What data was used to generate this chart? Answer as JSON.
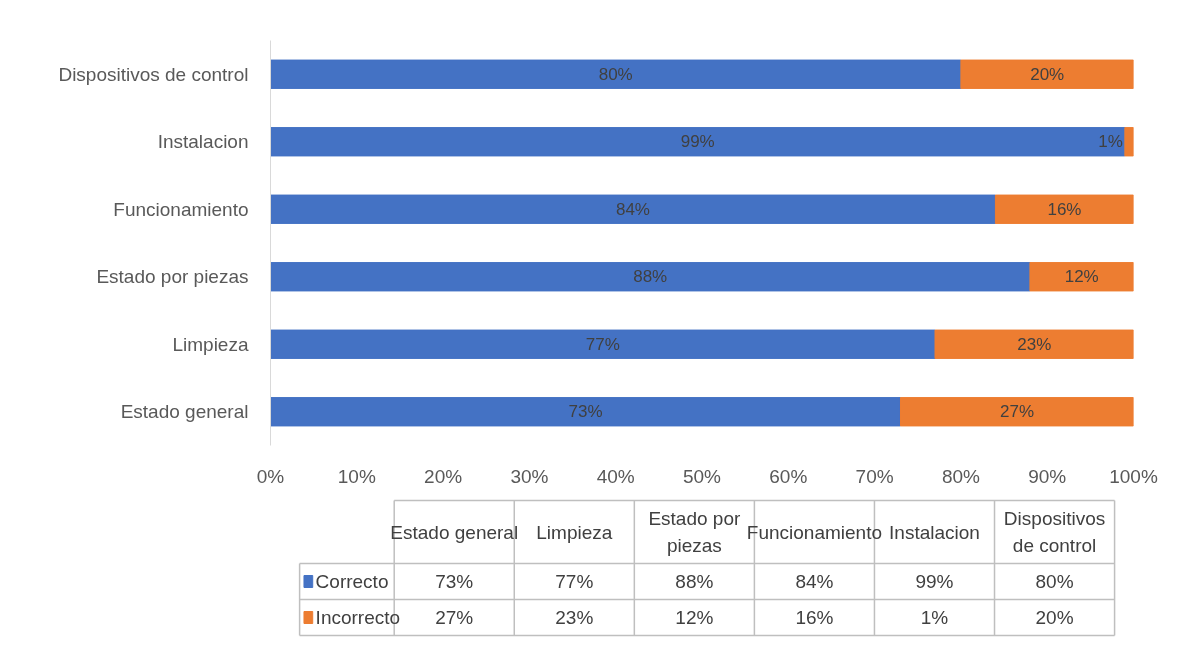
{
  "chart_data": {
    "type": "bar",
    "orientation": "horizontal",
    "stacked": true,
    "categories": [
      "Dispositivos de control",
      "Instalacion",
      "Funcionamiento",
      "Estado por piezas",
      "Limpieza",
      "Estado general"
    ],
    "series": [
      {
        "name": "Correcto",
        "color": "#4472c4",
        "values": [
          80,
          99,
          84,
          88,
          77,
          73
        ],
        "value_labels": [
          "80%",
          "99%",
          "84%",
          "88%",
          "77%",
          "73%"
        ]
      },
      {
        "name": "Incorrecto",
        "color": "#ed7d31",
        "values": [
          20,
          1,
          16,
          12,
          23,
          27
        ],
        "value_labels": [
          "20%",
          "1%",
          "16%",
          "12%",
          "23%",
          "27%"
        ]
      }
    ],
    "xlim": [
      0,
      100
    ],
    "xticks": [
      {
        "value": 0,
        "label": "0%"
      },
      {
        "value": 10,
        "label": "10%"
      },
      {
        "value": 20,
        "label": "20%"
      },
      {
        "value": 30,
        "label": "30%"
      },
      {
        "value": 40,
        "label": "40%"
      },
      {
        "value": 50,
        "label": "50%"
      },
      {
        "value": 60,
        "label": "60%"
      },
      {
        "value": 70,
        "label": "70%"
      },
      {
        "value": 80,
        "label": "80%"
      },
      {
        "value": 90,
        "label": "90%"
      },
      {
        "value": 100,
        "label": "100%"
      }
    ],
    "grid": false,
    "legend": "bottom"
  }
}
